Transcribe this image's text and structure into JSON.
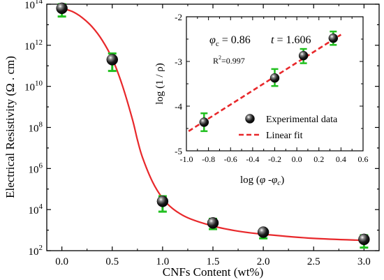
{
  "chart_data": [
    {
      "id": "main",
      "type": "scatter",
      "xlabel": "CNFs Content  (wt%)",
      "ylabel": "Electrical Resistivity (Ω . cm)",
      "xlim": [
        -0.15,
        3.15
      ],
      "ylim_log10": [
        2,
        14
      ],
      "y_scale": "log",
      "xticks": [
        0.0,
        0.5,
        1.0,
        1.5,
        2.0,
        2.5,
        3.0
      ],
      "xtick_labels": [
        "0.0",
        "0.5",
        "1.0",
        "1.5",
        "2.0",
        "2.5",
        "3.0"
      ],
      "ytick_exponents": [
        2,
        4,
        6,
        8,
        10,
        12,
        14
      ],
      "ytick_base": "10",
      "points": [
        {
          "x": 0.0,
          "y_log10": 13.8,
          "err_low": 13.4,
          "err_high": 14.0
        },
        {
          "x": 0.5,
          "y_log10": 11.3,
          "err_low": 10.75,
          "err_high": 11.6
        },
        {
          "x": 1.0,
          "y_log10": 4.4,
          "err_low": 3.9,
          "err_high": 4.65
        },
        {
          "x": 1.5,
          "y_log10": 3.35,
          "err_low": 3.05,
          "err_high": 3.55
        },
        {
          "x": 2.0,
          "y_log10": 2.9,
          "err_low": 2.6,
          "err_high": 3.05
        },
        {
          "x": 3.0,
          "y_log10": 2.55,
          "err_low": 2.15,
          "err_high": 2.75
        }
      ],
      "fit_curve": [
        [
          0.0,
          13.8
        ],
        [
          0.1,
          13.65
        ],
        [
          0.2,
          13.35
        ],
        [
          0.3,
          12.9
        ],
        [
          0.4,
          12.25
        ],
        [
          0.5,
          11.35
        ],
        [
          0.6,
          10.05
        ],
        [
          0.7,
          8.4
        ],
        [
          0.75,
          7.4
        ],
        [
          0.8,
          6.55
        ],
        [
          0.9,
          5.35
        ],
        [
          1.0,
          4.55
        ],
        [
          1.1,
          4.05
        ],
        [
          1.25,
          3.6
        ],
        [
          1.5,
          3.2
        ],
        [
          1.75,
          2.95
        ],
        [
          2.0,
          2.8
        ],
        [
          2.5,
          2.6
        ],
        [
          3.0,
          2.5
        ]
      ],
      "colors": {
        "fit": "#e8282b",
        "error": "#22c020",
        "marker": "#111111"
      }
    },
    {
      "id": "inset",
      "type": "scatter",
      "xlabel_pre": "log (",
      "xlabel_phi": "φ",
      "xlabel_mid": " -",
      "xlabel_sub": "c",
      "xlabel_post": ")",
      "ylabel": "log (1 / ρ)",
      "xlim": [
        -1.0,
        0.6
      ],
      "ylim": [
        -5,
        -2
      ],
      "xticks": [
        -1.0,
        -0.8,
        -0.6,
        -0.4,
        -0.2,
        0.0,
        0.2,
        0.4,
        0.6
      ],
      "xtick_labels": [
        "-1.0",
        "-0.8",
        "-0.6",
        "-0.4",
        "-0.2",
        "0.0",
        "0.2",
        "0.4",
        "0.6"
      ],
      "yticks": [
        -5,
        -4,
        -3,
        -2
      ],
      "ytick_labels": [
        "-5",
        "-4",
        "-3",
        "-2"
      ],
      "points": [
        {
          "x": -0.84,
          "y": -4.36,
          "err_low": -4.56,
          "err_high": -4.16
        },
        {
          "x": -0.2,
          "y": -3.37,
          "err_low": -3.55,
          "err_high": -3.17
        },
        {
          "x": 0.06,
          "y": -2.87,
          "err_low": -3.04,
          "err_high": -2.72
        },
        {
          "x": 0.33,
          "y": -2.48,
          "err_low": -2.63,
          "err_high": -2.33
        }
      ],
      "fit_line": [
        [
          -0.98,
          -4.56
        ],
        [
          0.4,
          -2.4
        ]
      ],
      "annotation": {
        "phi": "φ",
        "phi_sub": "c",
        "phi_value": " = 0.86",
        "t_symbol": "t",
        "t_value": " = 1.606",
        "r2_label": "R",
        "r2_sup": "2",
        "r2_value": "=0.997"
      },
      "legend": {
        "placement": "bottom-right",
        "entries": [
          "Experimental data",
          "Linear fit"
        ]
      },
      "colors": {
        "fit": "#e8282b",
        "error": "#22c020",
        "marker": "#111111"
      }
    }
  ]
}
